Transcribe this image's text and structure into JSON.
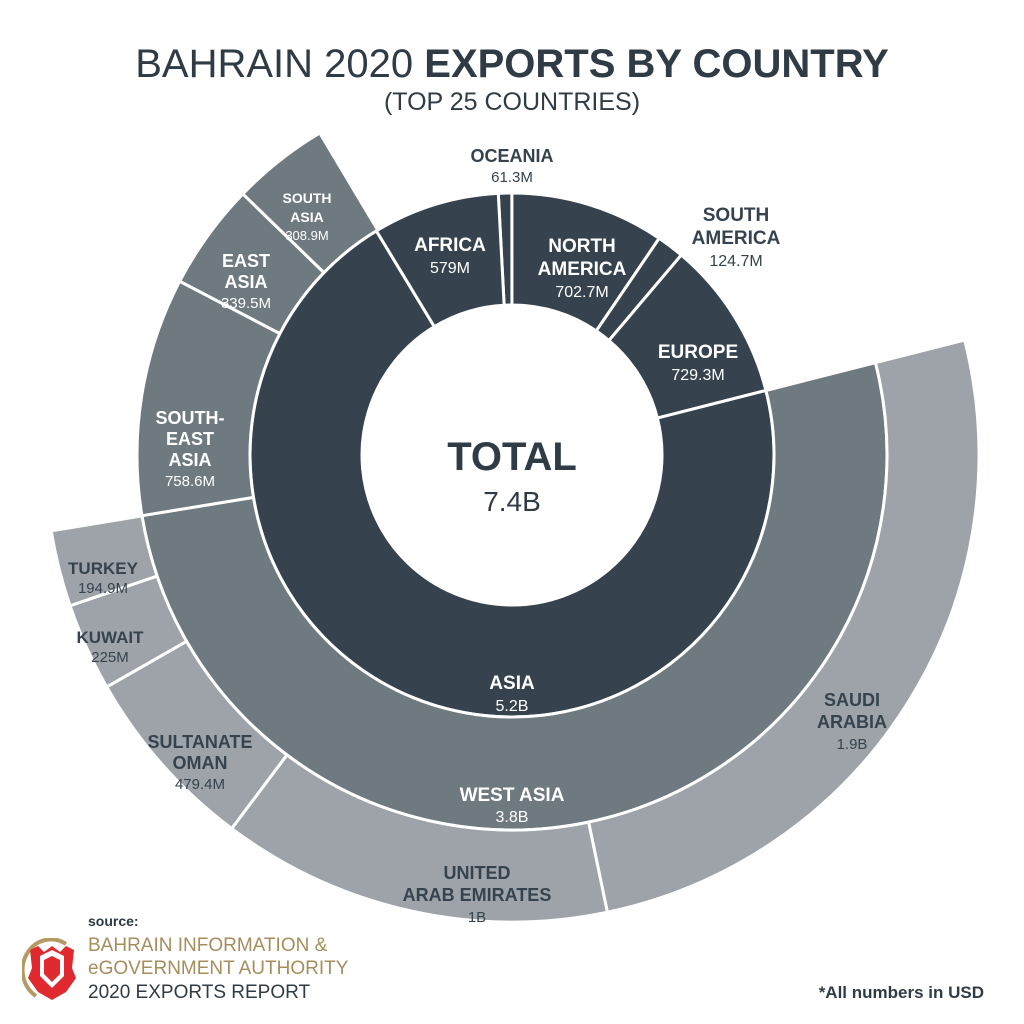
{
  "header": {
    "title_regular": "BAHRAIN 2020",
    "title_bold": "EXPORTS BY COUNTRY",
    "subtitle": "(TOP 25 COUNTRIES)"
  },
  "chart_data": {
    "type": "sunburst",
    "center": {
      "label": "TOTAL",
      "value": "7.4B",
      "value_usd": 7400000000
    },
    "colors": {
      "continent": "#36434e",
      "region": "#6f7a80",
      "country": "#9da3a8",
      "border": "#ffffff",
      "label_light": "#ffffff",
      "label_dark": "#36434e"
    },
    "continents": [
      {
        "name_lines": [
          "OCEANIA"
        ],
        "value_label": "61.3M",
        "value": 61.3
      },
      {
        "name_lines": [
          "NORTH",
          "AMERICA"
        ],
        "value_label": "702.7M",
        "value": 702.7
      },
      {
        "name_lines": [
          "SOUTH",
          "AMERICA"
        ],
        "value_label": "124.7M",
        "value": 124.7
      },
      {
        "name_lines": [
          "EUROPE"
        ],
        "value_label": "729.3M",
        "value": 729.3
      },
      {
        "name_lines": [
          "ASIA"
        ],
        "value_label": "5.2B",
        "value": 5200
      },
      {
        "name_lines": [
          "AFRICA"
        ],
        "value_label": "579M",
        "value": 579
      }
    ],
    "asia_regions": [
      {
        "name_lines": [
          "WEST ASIA"
        ],
        "value_label": "3.8B",
        "value": 3800
      },
      {
        "name_lines": [
          "SOUTH-",
          "EAST",
          "ASIA"
        ],
        "value_label": "758.6M",
        "value": 758.6
      },
      {
        "name_lines": [
          "EAST",
          "ASIA"
        ],
        "value_label": "339.5M",
        "value": 339.5
      },
      {
        "name_lines": [
          "SOUTH",
          "ASIA"
        ],
        "value_label": "308.9M",
        "value": 308.9
      }
    ],
    "west_asia_countries": [
      {
        "name_lines": [
          "SAUDI",
          "ARABIA"
        ],
        "value_label": "1.9B",
        "value": 1900
      },
      {
        "name_lines": [
          "UNITED",
          "ARAB EMIRATES"
        ],
        "value_label": "1B",
        "value": 1000
      },
      {
        "name_lines": [
          "SULTANATE",
          "OMAN"
        ],
        "value_label": "479.4M",
        "value": 479.4
      },
      {
        "name_lines": [
          "KUWAIT"
        ],
        "value_label": "225M",
        "value": 225
      },
      {
        "name_lines": [
          "TURKEY"
        ],
        "value_label": "194.9M",
        "value": 194.9
      }
    ],
    "unit": "M USD"
  },
  "footer": {
    "source_label": "source:",
    "org_line1": "BAHRAIN INFORMATION &",
    "org_line2": "eGOVERNMENT AUTHORITY",
    "report": "2020 EXPORTS REPORT",
    "note": "*All numbers in USD",
    "logo_icon": "bahrain-coat-of-arms"
  }
}
